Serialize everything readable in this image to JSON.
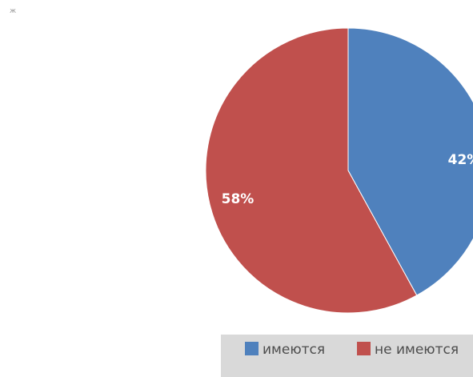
{
  "chart_data": {
    "type": "pie",
    "slices": [
      {
        "label": "имеются",
        "value": 42,
        "display": "42%",
        "color": "#4f81bd"
      },
      {
        "label": "не имеются",
        "value": 58,
        "display": "58%",
        "color": "#c0504d"
      }
    ],
    "start_angle_deg": 0,
    "direction": "clockwise",
    "legend_placement": "bottom",
    "legend_background": "#d9d9d9"
  },
  "corner_mark": "ж"
}
